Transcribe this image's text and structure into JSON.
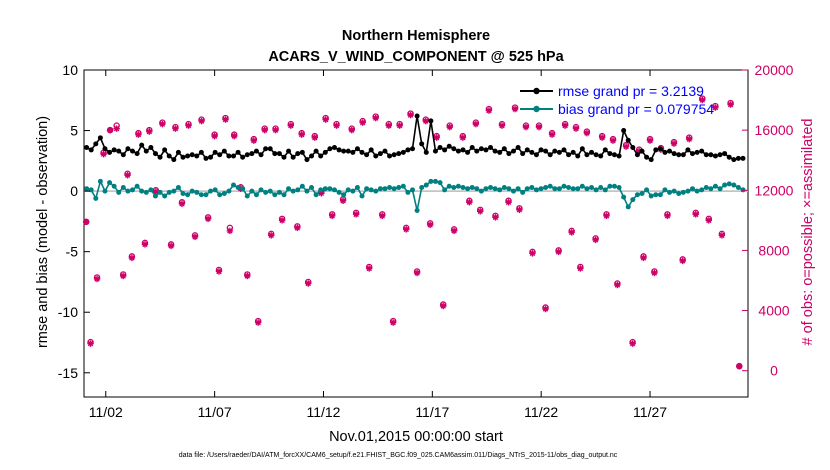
{
  "chart_data": {
    "type": "line",
    "title": "Northern Hemisphere",
    "subtitle": "ACARS_V_WIND_COMPONENT @ 525 hPa",
    "xlabel": "Nov.01,2015 00:00:00 start",
    "ylabel_left": "rmse and bias (model - observation)",
    "ylabel_right": "# of obs: o=possible; ×=assimilated",
    "footnote": "data file: /Users/raeder/DAI/ATM_forcXX/CAM6_setup/f.e21.FHIST_BGC.f09_025.CAM6assim.011/Diags_NTrS_2015-11/obs_diag_output.nc",
    "x_ticks": [
      "11/02",
      "11/07",
      "11/12",
      "11/17",
      "11/22",
      "11/27"
    ],
    "x_tick_days": [
      2,
      7,
      12,
      17,
      22,
      27
    ],
    "xlim_days": [
      1,
      31.5
    ],
    "ylim_left": [
      -17,
      10
    ],
    "yticks_left": [
      "10",
      "5",
      "0",
      "-5",
      "-10",
      "-15"
    ],
    "ylim_right": [
      -1750,
      20000
    ],
    "yticks_right": [
      "20000",
      "16000",
      "12000",
      "8000",
      "4000",
      "0"
    ],
    "legend": {
      "position": "top-right",
      "rmse_label": "rmse grand pr = 3.2139",
      "bias_label": "bias grand pr = 0.079754"
    },
    "series": [
      {
        "name": "rmse",
        "color": "#000000",
        "axis": "left",
        "values": [
          3.6,
          3.4,
          3.9,
          4.4,
          3.5,
          3.2,
          3.4,
          3.3,
          3.0,
          3.5,
          3.3,
          3.1,
          3.8,
          3.3,
          3.6,
          3.1,
          2.8,
          3.4,
          2.9,
          2.6,
          3.2,
          2.8,
          2.9,
          3.0,
          2.9,
          3.2,
          2.7,
          2.8,
          3.2,
          3.0,
          3.3,
          2.9,
          2.9,
          3.2,
          2.8,
          3.0,
          3.1,
          3.3,
          3.0,
          3.5,
          3.5,
          3.1,
          3.1,
          2.8,
          3.3,
          2.8,
          3.1,
          3.2,
          2.6,
          2.9,
          3.3,
          2.9,
          3.2,
          3.5,
          3.6,
          3.4,
          3.3,
          3.3,
          3.2,
          3.5,
          3.2,
          3.0,
          3.4,
          2.9,
          3.1,
          3.3,
          2.9,
          3.0,
          3.1,
          3.2,
          3.4,
          3.5,
          6.2,
          3.9,
          3.2,
          5.8,
          3.3,
          3.6,
          3.4,
          3.7,
          3.5,
          3.3,
          3.4,
          3.2,
          3.6,
          3.3,
          3.5,
          3.4,
          3.6,
          3.3,
          3.2,
          3.5,
          3.1,
          3.3,
          3.6,
          3.1,
          3.4,
          3.2,
          3.0,
          3.4,
          3.3,
          3.0,
          3.3,
          3.2,
          3.4,
          3.0,
          3.2,
          2.9,
          3.5,
          3.0,
          3.2,
          3.0,
          2.9,
          3.4,
          3.1,
          3.0,
          2.9,
          5.0,
          4.2,
          3.6,
          3.0,
          3.3,
          2.8,
          2.6,
          3.4,
          3.5,
          3.2,
          3.3,
          3.1,
          3.0,
          3.0,
          3.4,
          3.1,
          3.2,
          3.3,
          3.0,
          3.0,
          2.9,
          3.0,
          3.1,
          2.8,
          2.6,
          2.7,
          2.7
        ]
      },
      {
        "name": "bias",
        "color": "#008080",
        "axis": "left",
        "values": [
          0.2,
          0.1,
          -0.6,
          0.8,
          0.0,
          0.7,
          0.4,
          -0.1,
          0.3,
          0.0,
          0.1,
          0.4,
          0.0,
          -0.1,
          0.1,
          -0.4,
          -0.1,
          -0.4,
          -0.1,
          0.0,
          0.3,
          -0.2,
          -0.3,
          0.0,
          -0.1,
          -0.3,
          -0.3,
          0.0,
          0.1,
          -0.3,
          -0.2,
          0.0,
          0.5,
          0.3,
          0.2,
          -0.4,
          0.0,
          -0.3,
          0.1,
          -0.1,
          0.0,
          -0.3,
          -0.1,
          -0.3,
          0.2,
          0.0,
          0.1,
          0.4,
          0.0,
          0.3,
          -0.3,
          0.1,
          0.2,
          0.2,
          0.1,
          -0.1,
          -0.3,
          0.1,
          0.0,
          0.3,
          -0.4,
          0.2,
          0.1,
          0.0,
          0.2,
          0.2,
          0.3,
          0.2,
          0.3,
          0.4,
          -0.1,
          0.1,
          -1.6,
          0.3,
          0.5,
          0.8,
          0.8,
          0.7,
          0.1,
          0.4,
          0.3,
          0.4,
          0.3,
          0.2,
          0.3,
          0.2,
          0.0,
          0.2,
          0.3,
          0.2,
          0.1,
          0.3,
          0.2,
          0.0,
          0.2,
          -0.1,
          0.2,
          0.3,
          0.1,
          0.2,
          0.3,
          0.4,
          0.2,
          0.2,
          0.4,
          0.3,
          0.2,
          0.2,
          0.4,
          0.2,
          0.3,
          0.1,
          0.3,
          0.1,
          0.4,
          0.4,
          0.3,
          -0.5,
          -1.3,
          -0.7,
          -0.3,
          -0.2,
          0.1,
          -0.4,
          -0.3,
          -0.3,
          0.1,
          -0.1,
          0.0,
          -0.2,
          -0.1,
          0.0,
          0.2,
          0.0,
          0.1,
          0.3,
          0.2,
          0.4,
          0.2,
          0.5,
          0.6,
          0.5,
          0.3,
          0.1
        ]
      }
    ],
    "obs_possible_points": [
      [
        1.1,
        9900
      ],
      [
        1.3,
        1900
      ],
      [
        1.6,
        6200
      ],
      [
        1.9,
        14500
      ],
      [
        2.2,
        16000
      ],
      [
        2.5,
        16300
      ],
      [
        2.8,
        6400
      ],
      [
        3.0,
        13100
      ],
      [
        3.2,
        7600
      ],
      [
        3.5,
        15800
      ],
      [
        3.8,
        8500
      ],
      [
        4.0,
        16000
      ],
      [
        4.3,
        12000
      ],
      [
        4.6,
        16500
      ],
      [
        5.0,
        8400
      ],
      [
        5.2,
        16200
      ],
      [
        5.5,
        11200
      ],
      [
        5.8,
        16400
      ],
      [
        6.1,
        9000
      ],
      [
        6.4,
        16700
      ],
      [
        6.7,
        10200
      ],
      [
        7.0,
        15700
      ],
      [
        7.2,
        6700
      ],
      [
        7.5,
        16800
      ],
      [
        7.7,
        9500
      ],
      [
        7.9,
        15700
      ],
      [
        8.2,
        12200
      ],
      [
        8.5,
        6400
      ],
      [
        8.8,
        15400
      ],
      [
        9.0,
        3300
      ],
      [
        9.3,
        16100
      ],
      [
        9.6,
        9100
      ],
      [
        9.8,
        16100
      ],
      [
        10.1,
        10100
      ],
      [
        10.5,
        16400
      ],
      [
        10.8,
        9600
      ],
      [
        11.0,
        15800
      ],
      [
        11.3,
        5900
      ],
      [
        11.6,
        15600
      ],
      [
        11.9,
        11900
      ],
      [
        12.1,
        16800
      ],
      [
        12.4,
        10400
      ],
      [
        12.6,
        16400
      ],
      [
        12.9,
        11400
      ],
      [
        13.3,
        16100
      ],
      [
        13.5,
        10500
      ],
      [
        13.8,
        16600
      ],
      [
        14.1,
        6900
      ],
      [
        14.4,
        16900
      ],
      [
        14.7,
        10400
      ],
      [
        15.0,
        16400
      ],
      [
        15.2,
        3300
      ],
      [
        15.5,
        16400
      ],
      [
        15.8,
        9500
      ],
      [
        16.0,
        17100
      ],
      [
        16.3,
        6600
      ],
      [
        16.7,
        16700
      ],
      [
        16.9,
        9800
      ],
      [
        17.2,
        15600
      ],
      [
        17.5,
        4400
      ],
      [
        17.8,
        16300
      ],
      [
        18.0,
        9400
      ],
      [
        18.4,
        15600
      ],
      [
        18.7,
        11300
      ],
      [
        19.0,
        16500
      ],
      [
        19.2,
        10700
      ],
      [
        19.6,
        17400
      ],
      [
        19.9,
        10300
      ],
      [
        20.2,
        16400
      ],
      [
        20.5,
        11300
      ],
      [
        20.8,
        17500
      ],
      [
        21.0,
        10800
      ],
      [
        21.3,
        16300
      ],
      [
        21.6,
        7900
      ],
      [
        21.9,
        16300
      ],
      [
        22.2,
        4200
      ],
      [
        22.5,
        15800
      ],
      [
        22.8,
        8000
      ],
      [
        23.1,
        16400
      ],
      [
        23.4,
        9300
      ],
      [
        23.6,
        16200
      ],
      [
        23.8,
        6900
      ],
      [
        24.1,
        15900
      ],
      [
        24.5,
        8800
      ],
      [
        24.8,
        15600
      ],
      [
        25.0,
        10400
      ],
      [
        25.3,
        15400
      ],
      [
        25.5,
        5800
      ],
      [
        25.9,
        15000
      ],
      [
        26.2,
        1900
      ],
      [
        26.5,
        14700
      ],
      [
        26.7,
        7600
      ],
      [
        27.0,
        15400
      ],
      [
        27.2,
        6600
      ],
      [
        27.5,
        14800
      ],
      [
        27.8,
        10400
      ],
      [
        28.1,
        15200
      ],
      [
        28.5,
        7400
      ],
      [
        28.8,
        15500
      ],
      [
        29.1,
        10500
      ],
      [
        29.4,
        18100
      ],
      [
        29.7,
        10100
      ],
      [
        30.0,
        17600
      ],
      [
        30.3,
        9100
      ],
      [
        30.7,
        17800
      ],
      [
        31.1,
        300
      ]
    ],
    "obs_assimilated_points": [
      [
        1.1,
        9900
      ],
      [
        1.3,
        1800
      ],
      [
        1.6,
        6100
      ],
      [
        1.9,
        14400
      ],
      [
        2.2,
        16000
      ],
      [
        2.5,
        16100
      ],
      [
        2.8,
        6300
      ],
      [
        3.0,
        13000
      ],
      [
        3.2,
        7500
      ],
      [
        3.5,
        15700
      ],
      [
        3.8,
        8400
      ],
      [
        4.0,
        15900
      ],
      [
        4.3,
        11900
      ],
      [
        4.6,
        16400
      ],
      [
        5.0,
        8300
      ],
      [
        5.2,
        16100
      ],
      [
        5.5,
        11100
      ],
      [
        5.8,
        16300
      ],
      [
        6.1,
        8900
      ],
      [
        6.4,
        16600
      ],
      [
        6.7,
        10100
      ],
      [
        7.0,
        15600
      ],
      [
        7.2,
        6600
      ],
      [
        7.5,
        16700
      ],
      [
        7.7,
        9300
      ],
      [
        7.9,
        15600
      ],
      [
        8.2,
        12100
      ],
      [
        8.5,
        6300
      ],
      [
        8.8,
        15300
      ],
      [
        9.0,
        3200
      ],
      [
        9.3,
        16000
      ],
      [
        9.6,
        9000
      ],
      [
        9.8,
        16000
      ],
      [
        10.1,
        10000
      ],
      [
        10.5,
        16300
      ],
      [
        10.8,
        9500
      ],
      [
        11.0,
        15700
      ],
      [
        11.3,
        5800
      ],
      [
        11.6,
        15500
      ],
      [
        11.9,
        11800
      ],
      [
        12.1,
        16700
      ],
      [
        12.4,
        10300
      ],
      [
        12.6,
        16300
      ],
      [
        12.9,
        11300
      ],
      [
        13.3,
        16000
      ],
      [
        13.5,
        10400
      ],
      [
        13.8,
        16500
      ],
      [
        14.1,
        6800
      ],
      [
        14.4,
        16800
      ],
      [
        14.7,
        10300
      ],
      [
        15.0,
        16300
      ],
      [
        15.2,
        3200
      ],
      [
        15.5,
        16300
      ],
      [
        15.8,
        9400
      ],
      [
        16.0,
        17000
      ],
      [
        16.3,
        6500
      ],
      [
        16.7,
        16600
      ],
      [
        16.9,
        9700
      ],
      [
        17.2,
        15500
      ],
      [
        17.5,
        4300
      ],
      [
        17.8,
        16200
      ],
      [
        18.0,
        9300
      ],
      [
        18.4,
        15500
      ],
      [
        18.7,
        11200
      ],
      [
        19.0,
        16400
      ],
      [
        19.2,
        10600
      ],
      [
        19.6,
        17300
      ],
      [
        19.9,
        10200
      ],
      [
        20.2,
        16300
      ],
      [
        20.5,
        11200
      ],
      [
        20.8,
        17400
      ],
      [
        21.0,
        10700
      ],
      [
        21.3,
        16200
      ],
      [
        21.6,
        7800
      ],
      [
        21.9,
        16200
      ],
      [
        22.2,
        4100
      ],
      [
        22.5,
        15700
      ],
      [
        22.8,
        7900
      ],
      [
        23.1,
        16300
      ],
      [
        23.4,
        9200
      ],
      [
        23.6,
        16100
      ],
      [
        23.8,
        6800
      ],
      [
        24.1,
        15800
      ],
      [
        24.5,
        8700
      ],
      [
        24.8,
        15500
      ],
      [
        25.0,
        10300
      ],
      [
        25.3,
        15300
      ],
      [
        25.5,
        5700
      ],
      [
        25.9,
        14900
      ],
      [
        26.2,
        1800
      ],
      [
        26.5,
        14600
      ],
      [
        26.7,
        7500
      ],
      [
        27.0,
        15300
      ],
      [
        27.2,
        6500
      ],
      [
        27.5,
        14700
      ],
      [
        27.8,
        10300
      ],
      [
        28.1,
        15100
      ],
      [
        28.5,
        7300
      ],
      [
        28.8,
        15400
      ],
      [
        29.1,
        10400
      ],
      [
        29.4,
        18000
      ],
      [
        29.7,
        10000
      ],
      [
        30.0,
        17500
      ],
      [
        30.3,
        9000
      ],
      [
        30.7,
        17700
      ],
      [
        31.1,
        300
      ]
    ],
    "colors": {
      "rmse": "#000000",
      "bias": "#008080",
      "obs": "#cc0066",
      "zero_line": "#bbbbbb",
      "legend_text": "#0000ff"
    }
  }
}
